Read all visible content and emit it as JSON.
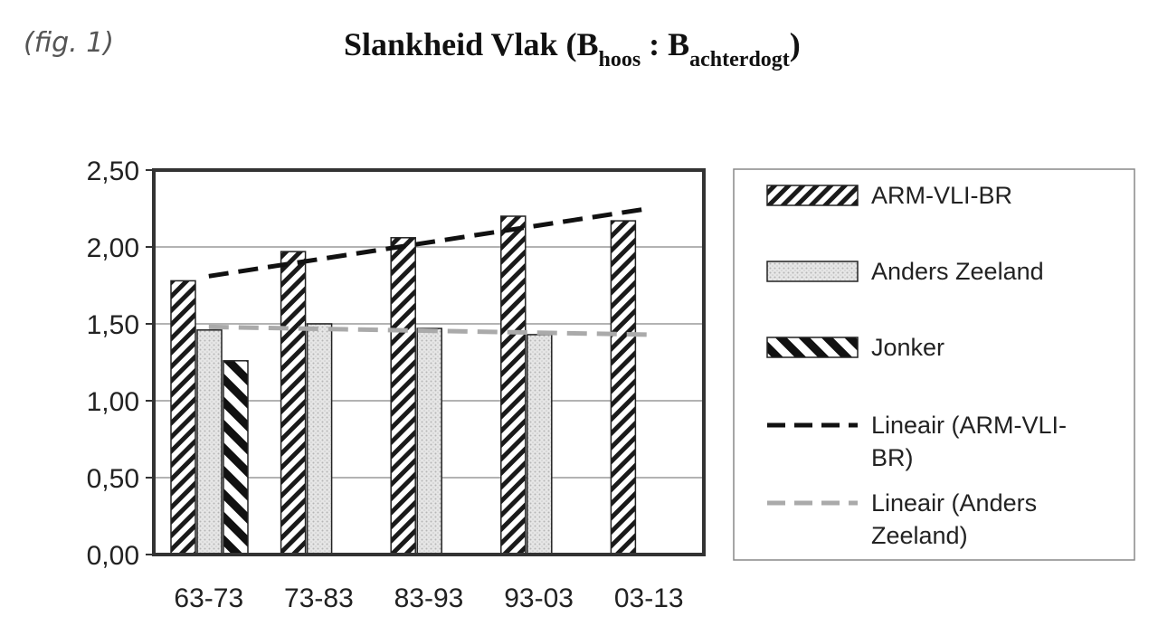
{
  "figure_label": "(fig. 1)",
  "title": {
    "main_prefix": "Slankheid Vlak (B",
    "sub1": "hoos",
    "separator": " : B",
    "sub2": "achterdogt",
    "close": ")"
  },
  "chart_data": {
    "type": "bar",
    "title": "Slankheid Vlak (B hoos : B achterdogt)",
    "xlabel": "",
    "ylabel": "",
    "categories": [
      "63-73",
      "73-83",
      "83-93",
      "93-03",
      "03-13"
    ],
    "ylim": [
      0,
      2.5
    ],
    "yticks": [
      "0,00",
      "0,50",
      "1,00",
      "1,50",
      "2,00",
      "2,50"
    ],
    "grid": true,
    "legend_position": "right",
    "series": [
      {
        "name": "ARM-VLI-BR",
        "pattern": "dense-diagonal",
        "values": [
          1.78,
          1.97,
          2.06,
          2.2,
          2.17
        ]
      },
      {
        "name": "Anders Zeeland",
        "pattern": "dotted-light-gray",
        "values": [
          1.46,
          1.5,
          1.47,
          1.43,
          null
        ]
      },
      {
        "name": "Jonker",
        "pattern": "wide-diagonal",
        "values": [
          1.26,
          null,
          null,
          null,
          null
        ]
      }
    ],
    "trendlines": [
      {
        "name": "Lineair (ARM-VLI-BR)",
        "legend_lines": [
          "Lineair (ARM-VLI-",
          "BR)"
        ],
        "color": "#111111",
        "start": 1.81,
        "end": 2.25
      },
      {
        "name": "Lineair (Anders Zeeland)",
        "legend_lines": [
          "Lineair (Anders",
          "Zeeland)"
        ],
        "color": "#aaaaaa",
        "start": 1.48,
        "end": 1.43
      }
    ]
  }
}
